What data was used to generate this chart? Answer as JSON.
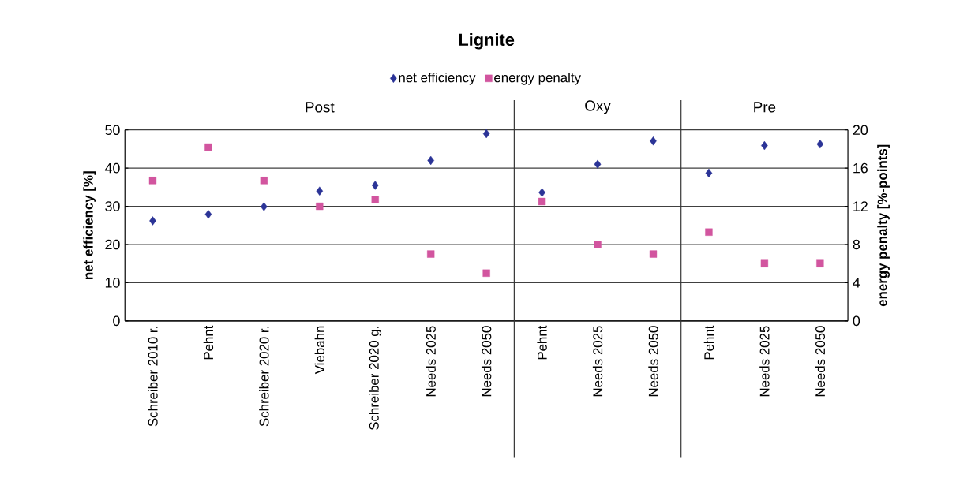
{
  "chart_data": {
    "type": "scatter",
    "title": "Lignite",
    "ylabel": "net efficiency [%]",
    "y2label": "energy penalty [%-points]",
    "categories": [
      "Schreiber 2010 r.",
      "Pehnt",
      "Schreiber 2020 r.",
      "Viebahn",
      "Schreiber 2020 g.",
      "Needs 2025",
      "Needs 2050",
      "Pehnt",
      "Needs 2025",
      "Needs 2050",
      "Pehnt",
      "Needs 2025",
      "Needs 2050"
    ],
    "series": [
      {
        "name": "net efficiency",
        "color": "#2b3497",
        "marker": "diamond",
        "values": [
          26.2,
          27.9,
          29.9,
          34.0,
          35.5,
          42.0,
          49.0,
          33.6,
          41.0,
          47.1,
          38.7,
          45.9,
          46.3
        ]
      },
      {
        "name": "energy penalty",
        "color": "#d2559f",
        "marker": "square",
        "axis": "y2",
        "values": [
          14.7,
          18.2,
          14.7,
          12.0,
          12.7,
          7.0,
          5.0,
          12.5,
          8.0,
          7.0,
          9.3,
          6.0,
          6.0
        ]
      }
    ],
    "ylim": [
      0,
      50
    ],
    "yticks": [
      0,
      10,
      20,
      30,
      40,
      50
    ],
    "y2lim": [
      0,
      20
    ],
    "y2ticks": [
      0,
      4,
      8,
      12,
      16,
      20
    ],
    "annotations": [
      "Post",
      "Oxy",
      "Pre"
    ],
    "grid": "y",
    "legend": "top"
  }
}
